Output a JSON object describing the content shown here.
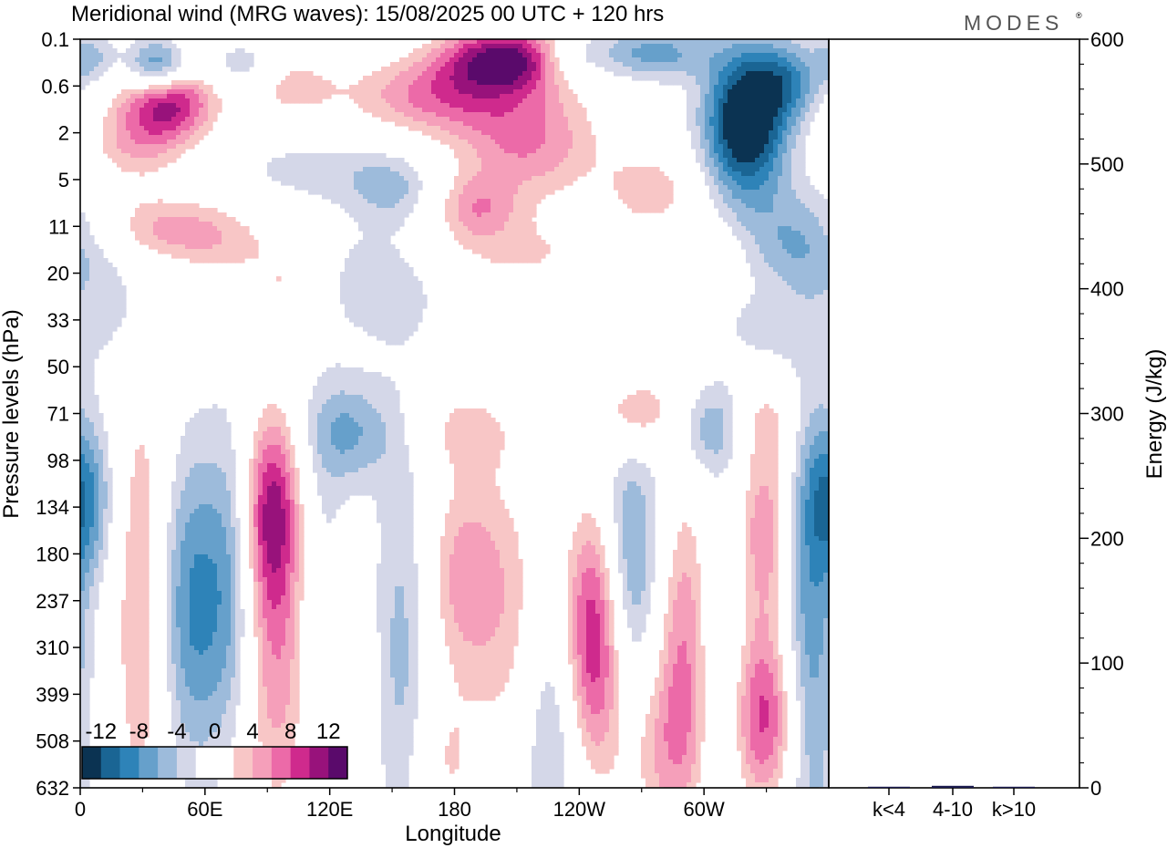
{
  "brand": "MODES",
  "brand_mark": "®",
  "chart_data": [
    {
      "type": "heatmap",
      "title": "Meridional wind (MRG waves):  15/08/2025  00 UTC  + 120 hrs",
      "xlabel": "Longitude",
      "ylabel": "Pressure levels (hPa)",
      "x_ticks": [
        "0",
        "60E",
        "120E",
        "180",
        "120W",
        "60W"
      ],
      "x_range_deg": [
        0,
        360
      ],
      "y_levels": [
        "0.1",
        "0.6",
        "2",
        "5",
        "11",
        "20",
        "33",
        "50",
        "71",
        "98",
        "134",
        "180",
        "237",
        "310",
        "399",
        "508",
        "632"
      ],
      "colorbar": {
        "labels": [
          "-12",
          "-8",
          "-4",
          "0",
          "4",
          "8",
          "12"
        ],
        "levels": [
          -14,
          -12,
          -10,
          -8,
          -6,
          -4,
          -2,
          2,
          4,
          6,
          8,
          10,
          12,
          14
        ],
        "colors": [
          "#0b3352",
          "#1a6594",
          "#2e83b8",
          "#66a0cb",
          "#9dbbdb",
          "#d4d7e8",
          "#ffffff",
          "#ffffff",
          "#f8c6c6",
          "#f59fba",
          "#ec6aa8",
          "#cf2a8d",
          "#98127b",
          "#5a0a6b"
        ]
      },
      "field_features": [
        {
          "lon": 38,
          "lev": 0.6,
          "value": -17,
          "sx": 12,
          "sy": 0.45
        },
        {
          "lon": 42,
          "lev": 1.1,
          "value": 16,
          "sx": 16,
          "sy": 0.7
        },
        {
          "lon": 25,
          "lev": 2.3,
          "value": 5,
          "sx": 18,
          "sy": 0.6
        },
        {
          "lon": 5,
          "lev": 0.4,
          "value": -5,
          "sx": 8,
          "sy": 0.4
        },
        {
          "lon": 75,
          "lev": 0.6,
          "value": -5,
          "sx": 14,
          "sy": 0.4
        },
        {
          "lon": 100,
          "lev": 1.0,
          "value": 5,
          "sx": 16,
          "sy": 0.5
        },
        {
          "lon": 205,
          "lev": 0.4,
          "value": 14,
          "sx": 22,
          "sy": 0.5
        },
        {
          "lon": 170,
          "lev": 1.2,
          "value": 8,
          "sx": 30,
          "sy": 0.6
        },
        {
          "lon": 215,
          "lev": 2.2,
          "value": 8,
          "sx": 26,
          "sy": 0.9
        },
        {
          "lon": 190,
          "lev": 3.6,
          "value": 6,
          "sx": 14,
          "sy": 0.5
        },
        {
          "lon": 235,
          "lev": 0.4,
          "value": -5,
          "sx": 12,
          "sy": 0.4
        },
        {
          "lon": 275,
          "lev": 0.3,
          "value": -7,
          "sx": 20,
          "sy": 0.4
        },
        {
          "lon": 320,
          "lev": 1.8,
          "value": -16,
          "sx": 14,
          "sy": 1.1
        },
        {
          "lon": 340,
          "lev": 0.9,
          "value": -7,
          "sx": 12,
          "sy": 0.6
        },
        {
          "lon": 275,
          "lev": 3.2,
          "value": 5,
          "sx": 16,
          "sy": 0.6
        },
        {
          "lon": 115,
          "lev": 2.8,
          "value": -3,
          "sx": 30,
          "sy": 0.5
        },
        {
          "lon": 150,
          "lev": 3.2,
          "value": -4,
          "sx": 14,
          "sy": 0.5
        },
        {
          "lon": 45,
          "lev": 4.0,
          "value": 6,
          "sx": 28,
          "sy": 0.5
        },
        {
          "lon": 65,
          "lev": 4.6,
          "value": 3,
          "sx": 22,
          "sy": 0.5
        },
        {
          "lon": 100,
          "lev": 5.3,
          "value": 4,
          "sx": 14,
          "sy": 0.6
        },
        {
          "lon": 210,
          "lev": 4.6,
          "value": 4,
          "sx": 40,
          "sy": 0.6
        },
        {
          "lon": 300,
          "lev": 4.6,
          "value": 3,
          "sx": 14,
          "sy": 0.5
        },
        {
          "lon": 345,
          "lev": 4.3,
          "value": -6,
          "sx": 20,
          "sy": 0.8
        },
        {
          "lon": 145,
          "lev": 5.1,
          "value": -4,
          "sx": 24,
          "sy": 0.9
        },
        {
          "lon": 20,
          "lev": 5.8,
          "value": -3,
          "sx": 20,
          "sy": 1.0
        },
        {
          "lon": 200,
          "lev": 6.0,
          "value": 3,
          "sx": 14,
          "sy": 0.4
        },
        {
          "lon": 255,
          "lev": 6.7,
          "value": 3,
          "sx": 18,
          "sy": 0.4
        },
        {
          "lon": 330,
          "lev": 6.2,
          "value": -3,
          "sx": 14,
          "sy": 0.5
        },
        {
          "lon": 270,
          "lev": 8.0,
          "value": 7,
          "sx": 16,
          "sy": 0.6
        },
        {
          "lon": 130,
          "lev": 8.4,
          "value": -6,
          "sx": 14,
          "sy": 0.8
        },
        {
          "lon": 185,
          "lev": 8.3,
          "value": 4,
          "sx": 18,
          "sy": 0.7
        },
        {
          "lon": 300,
          "lev": 8.3,
          "value": -6,
          "sx": 14,
          "sy": 0.7
        },
        {
          "lon": 330,
          "lev": 8.2,
          "value": 4,
          "sx": 10,
          "sy": 0.6
        },
        {
          "lon": 2,
          "lev": 9.8,
          "value": -8,
          "sx": 10,
          "sy": 1.2
        },
        {
          "lon": 30,
          "lev": 12.0,
          "value": 8,
          "sx": 10,
          "sy": 3.5
        },
        {
          "lon": 55,
          "lev": 12.1,
          "value": -9,
          "sx": 16,
          "sy": 2.4
        },
        {
          "lon": 75,
          "lev": 11.5,
          "value": -4,
          "sx": 8,
          "sy": 2.5
        },
        {
          "lon": 92,
          "lev": 10.0,
          "value": 11,
          "sx": 10,
          "sy": 1.5
        },
        {
          "lon": 95,
          "lev": 13.2,
          "value": 8,
          "sx": 14,
          "sy": 2.5
        },
        {
          "lon": 115,
          "lev": 12.0,
          "value": -4,
          "sx": 10,
          "sy": 3.0
        },
        {
          "lon": 130,
          "lev": 14.0,
          "value": 3,
          "sx": 8,
          "sy": 2.0
        },
        {
          "lon": 155,
          "lev": 13.0,
          "value": -5,
          "sx": 10,
          "sy": 3.5
        },
        {
          "lon": 185,
          "lev": 11.5,
          "value": 7,
          "sx": 14,
          "sy": 1.6
        },
        {
          "lon": 210,
          "lev": 13.0,
          "value": 4,
          "sx": 14,
          "sy": 3.0
        },
        {
          "lon": 225,
          "lev": 15.0,
          "value": -6,
          "sx": 10,
          "sy": 2.0
        },
        {
          "lon": 248,
          "lev": 12.5,
          "value": 15,
          "sx": 10,
          "sy": 2.0
        },
        {
          "lon": 263,
          "lev": 11.3,
          "value": -9,
          "sx": 14,
          "sy": 2.0
        },
        {
          "lon": 290,
          "lev": 12.8,
          "value": 9,
          "sx": 12,
          "sy": 2.5
        },
        {
          "lon": 307,
          "lev": 13.5,
          "value": -5,
          "sx": 8,
          "sy": 3.0
        },
        {
          "lon": 330,
          "lev": 10.5,
          "value": 8,
          "sx": 10,
          "sy": 1.5
        },
        {
          "lon": 330,
          "lev": 14.5,
          "value": 11,
          "sx": 12,
          "sy": 1.4
        },
        {
          "lon": 350,
          "lev": 13.0,
          "value": -8,
          "sx": 10,
          "sy": 3.5
        },
        {
          "lon": 280,
          "lev": 15.3,
          "value": 4,
          "sx": 16,
          "sy": 1.3
        },
        {
          "lon": 175,
          "lev": 15.5,
          "value": 4,
          "sx": 12,
          "sy": 1.2
        }
      ]
    },
    {
      "type": "bar",
      "categories": [
        "k<4",
        "4-10",
        "k>10"
      ],
      "values": [
        0.3,
        1.6,
        0.3
      ],
      "ylabel": "Energy (J/kg)",
      "ylim": [
        0,
        600
      ],
      "y_ticks": [
        "0",
        "100",
        "200",
        "300",
        "400",
        "500",
        "600"
      ],
      "bar_color": "#1a1a4e"
    }
  ]
}
